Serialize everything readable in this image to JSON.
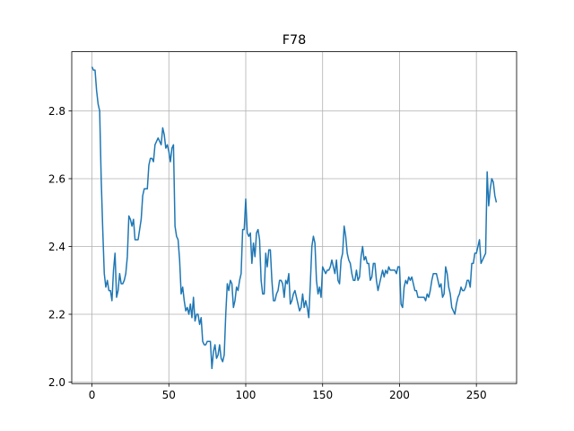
{
  "chart_data": {
    "type": "line",
    "title": "F78",
    "color": "#1f77b4",
    "grid": true,
    "xlim": [
      -13.15,
      276.15
    ],
    "xticks": [
      0,
      50,
      100,
      150,
      200,
      250
    ],
    "ylim": [
      1.9955,
      2.9745
    ],
    "yticks": [
      {
        "value": 2,
        "label": "2.0"
      },
      2.2,
      2.4,
      2.6,
      2.8
    ],
    "values": [
      2.93,
      2.92,
      2.92,
      2.86,
      2.82,
      2.8,
      2.6,
      2.45,
      2.32,
      2.28,
      2.3,
      2.27,
      2.27,
      2.24,
      2.33,
      2.38,
      2.25,
      2.27,
      2.32,
      2.29,
      2.29,
      2.3,
      2.32,
      2.37,
      2.49,
      2.48,
      2.46,
      2.48,
      2.42,
      2.42,
      2.42,
      2.45,
      2.48,
      2.55,
      2.57,
      2.57,
      2.57,
      2.64,
      2.66,
      2.66,
      2.65,
      2.7,
      2.71,
      2.72,
      2.71,
      2.7,
      2.75,
      2.73,
      2.69,
      2.7,
      2.68,
      2.65,
      2.69,
      2.7,
      2.46,
      2.43,
      2.42,
      2.36,
      2.26,
      2.28,
      2.24,
      2.21,
      2.22,
      2.2,
      2.23,
      2.19,
      2.25,
      2.18,
      2.2,
      2.2,
      2.17,
      2.19,
      2.12,
      2.11,
      2.11,
      2.12,
      2.12,
      2.12,
      2.04,
      2.09,
      2.11,
      2.07,
      2.08,
      2.11,
      2.07,
      2.06,
      2.08,
      2.2,
      2.29,
      2.27,
      2.3,
      2.29,
      2.22,
      2.24,
      2.28,
      2.27,
      2.3,
      2.32,
      2.45,
      2.45,
      2.54,
      2.44,
      2.43,
      2.44,
      2.35,
      2.41,
      2.37,
      2.44,
      2.45,
      2.42,
      2.3,
      2.26,
      2.26,
      2.38,
      2.34,
      2.39,
      2.39,
      2.3,
      2.24,
      2.24,
      2.26,
      2.27,
      2.3,
      2.3,
      2.29,
      2.25,
      2.3,
      2.29,
      2.32,
      2.23,
      2.24,
      2.26,
      2.27,
      2.25,
      2.23,
      2.21,
      2.22,
      2.26,
      2.22,
      2.24,
      2.22,
      2.19,
      2.29,
      2.4,
      2.43,
      2.41,
      2.3,
      2.26,
      2.28,
      2.25,
      2.34,
      2.33,
      2.32,
      2.33,
      2.33,
      2.34,
      2.36,
      2.34,
      2.32,
      2.36,
      2.3,
      2.29,
      2.36,
      2.38,
      2.46,
      2.43,
      2.38,
      2.36,
      2.35,
      2.32,
      2.3,
      2.3,
      2.33,
      2.3,
      2.31,
      2.37,
      2.4,
      2.36,
      2.37,
      2.35,
      2.35,
      2.3,
      2.31,
      2.35,
      2.35,
      2.3,
      2.27,
      2.29,
      2.31,
      2.33,
      2.31,
      2.33,
      2.32,
      2.34,
      2.33,
      2.33,
      2.33,
      2.33,
      2.32,
      2.34,
      2.34,
      2.23,
      2.22,
      2.28,
      2.3,
      2.29,
      2.31,
      2.3,
      2.31,
      2.29,
      2.27,
      2.27,
      2.25,
      2.25,
      2.25,
      2.25,
      2.25,
      2.24,
      2.26,
      2.25,
      2.27,
      2.3,
      2.32,
      2.32,
      2.32,
      2.3,
      2.28,
      2.29,
      2.25,
      2.26,
      2.34,
      2.32,
      2.28,
      2.26,
      2.22,
      2.21,
      2.2,
      2.23,
      2.25,
      2.26,
      2.28,
      2.27,
      2.27,
      2.28,
      2.3,
      2.3,
      2.28,
      2.35,
      2.35,
      2.38,
      2.38,
      2.4,
      2.42,
      2.35,
      2.36,
      2.37,
      2.38,
      2.62,
      2.52,
      2.57,
      2.6,
      2.59,
      2.55,
      2.53
    ]
  }
}
